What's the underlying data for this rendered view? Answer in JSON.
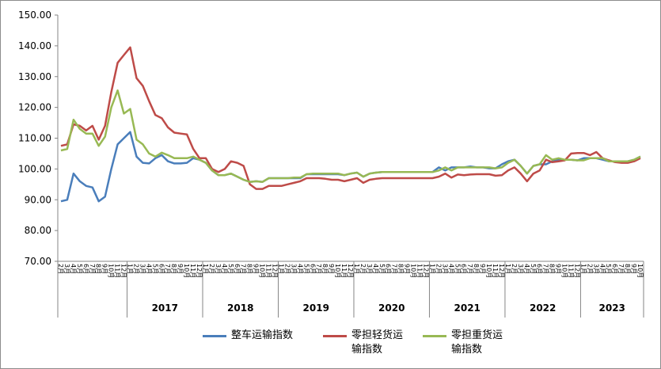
{
  "chart_data": {
    "type": "line",
    "categories": [
      "2月",
      "3月",
      "4月",
      "5月",
      "6月",
      "7月",
      "8月",
      "9月",
      "10月",
      "11月",
      "12月",
      "1月",
      "2月",
      "3月",
      "4月",
      "5月",
      "6月",
      "7月",
      "8月",
      "9月",
      "10月",
      "11月",
      "12月",
      "1月",
      "2月",
      "3月",
      "4月",
      "5月",
      "6月",
      "7月",
      "8月",
      "9月",
      "10月",
      "11月",
      "12月",
      "1月",
      "2月",
      "3月",
      "4月",
      "5月",
      "6月",
      "7月",
      "8月",
      "9月",
      "10月",
      "11月",
      "12月",
      "1月",
      "2月",
      "3月",
      "4月",
      "5月",
      "6月",
      "7月",
      "8月",
      "9月",
      "10月",
      "11月",
      "12月",
      "1月",
      "2月",
      "3月",
      "4月",
      "5月",
      "6月",
      "7月",
      "8月",
      "9月",
      "10月",
      "11月",
      "12月",
      "1月",
      "2月",
      "3月",
      "4月",
      "5月",
      "6月",
      "7月",
      "8月",
      "9月",
      "10月",
      "11月",
      "12月",
      "1月",
      "2月",
      "3月",
      "4月",
      "5月",
      "6月",
      "7月",
      "8月",
      "9月",
      "10月"
    ],
    "year_labels": [
      "2017",
      "2018",
      "2019",
      "2020",
      "2021",
      "2022",
      "2023"
    ],
    "series": [
      {
        "name": "整车运输指数",
        "color": "#4a7ebb",
        "values": [
          89.5,
          90,
          98.5,
          96,
          94.5,
          94,
          89.5,
          91,
          100,
          108,
          110,
          112,
          104,
          102,
          101.8,
          103.5,
          104.5,
          102.5,
          101.8,
          101.8,
          102,
          103.5,
          103,
          102,
          99.5,
          98,
          98,
          98.5,
          97.5,
          96.5,
          95.8,
          96,
          95.8,
          97,
          97,
          97,
          97,
          97,
          97,
          98.3,
          98.3,
          98.3,
          98.3,
          98.3,
          98.3,
          98,
          98.5,
          98.8,
          97.5,
          98.5,
          98.8,
          99,
          99,
          99,
          99,
          99,
          99,
          99,
          99,
          99,
          100.5,
          99.5,
          100.5,
          100.5,
          100.5,
          100.8,
          100.5,
          100.5,
          100.2,
          100.2,
          101.5,
          102.5,
          103,
          101,
          98.5,
          101,
          101.5,
          101.5,
          102.5,
          103,
          103,
          103,
          102.8,
          103.5,
          103.5,
          103.5,
          103,
          102.5,
          102.5,
          102.5,
          102.5,
          103,
          104
        ]
      },
      {
        "name": "零担轻货运输指数",
        "color": "#be4b48",
        "values": [
          107.5,
          108,
          114.5,
          114,
          112.5,
          114,
          109.5,
          114,
          125,
          134.5,
          137,
          139.5,
          129.5,
          127,
          122,
          117.5,
          116.5,
          113.5,
          111.8,
          111.5,
          111.2,
          106.5,
          103.5,
          103.5,
          100,
          99,
          100,
          102.5,
          102,
          101,
          95,
          93.5,
          93.5,
          94.5,
          94.5,
          94.5,
          95,
          95.5,
          96,
          97,
          97,
          97,
          96.8,
          96.5,
          96.5,
          96,
          96.5,
          97,
          95.5,
          96.5,
          96.8,
          97,
          97,
          97,
          97,
          97,
          97,
          97,
          97,
          97,
          97.5,
          98.5,
          97.2,
          98.2,
          98,
          98.2,
          98.3,
          98.3,
          98.3,
          97.8,
          98,
          99.5,
          100.5,
          98.5,
          96,
          98.5,
          99.5,
          103,
          102.2,
          102.5,
          102.8,
          105,
          105.2,
          105.2,
          104.5,
          105.5,
          103.5,
          102.8,
          102.2,
          102,
          102,
          102.5,
          103.5
        ]
      },
      {
        "name": "零担重货运输指数",
        "color": "#98b954",
        "values": [
          106,
          106.5,
          116,
          113,
          111.5,
          111.5,
          107.5,
          110.5,
          120,
          125.5,
          118,
          119.5,
          109.5,
          108,
          105,
          104,
          105.3,
          104.5,
          103.5,
          103.5,
          103.5,
          104,
          103,
          102,
          99.5,
          98,
          98,
          98.5,
          97.5,
          96.5,
          95.8,
          96,
          95.8,
          97,
          97,
          97,
          97,
          97.2,
          97.2,
          98.3,
          98.5,
          98.5,
          98.5,
          98.5,
          98.5,
          98,
          98.5,
          98.8,
          97.5,
          98.5,
          98.8,
          99,
          99,
          99,
          99,
          99,
          99,
          99,
          99,
          99,
          99.5,
          100.5,
          99.5,
          100.5,
          100.5,
          100.5,
          100.5,
          100.5,
          100.5,
          100.2,
          100.5,
          102,
          103,
          101,
          98.5,
          101,
          101.5,
          104.5,
          103,
          103.5,
          103,
          103,
          102.8,
          102.8,
          103.5,
          103.5,
          103.5,
          102.5,
          102.5,
          102.5,
          102.5,
          103,
          104
        ]
      }
    ],
    "ylim": [
      70,
      150
    ],
    "yticks": [
      {
        "value": 70,
        "label": "70.00"
      },
      {
        "value": 80,
        "label": "80.00"
      },
      {
        "value": 90,
        "label": "90.00"
      },
      {
        "value": 100,
        "label": "100.00"
      },
      {
        "value": 110,
        "label": "110.00"
      },
      {
        "value": 120,
        "label": "120.00"
      },
      {
        "value": 130,
        "label": "130.00"
      },
      {
        "value": 140,
        "label": "140.00"
      },
      {
        "value": 150,
        "label": "150.00"
      }
    ],
    "grid": false,
    "legend": "bottom"
  }
}
